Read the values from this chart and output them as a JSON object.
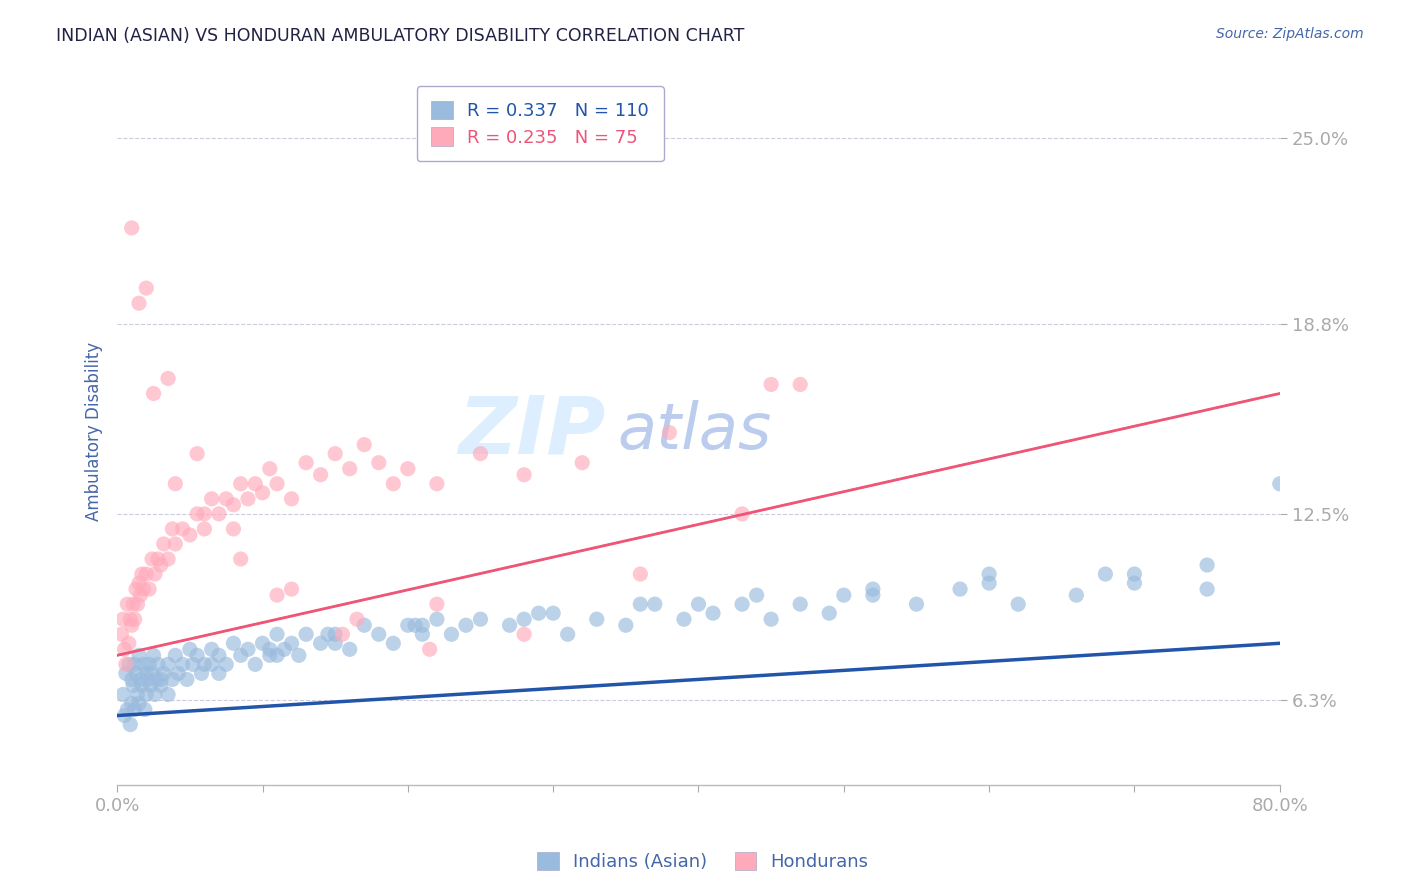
{
  "title": "INDIAN (ASIAN) VS HONDURAN AMBULATORY DISABILITY CORRELATION CHART",
  "source": "Source: ZipAtlas.com",
  "ylabel": "Ambulatory Disability",
  "xlim": [
    0.0,
    80.0
  ],
  "ylim": [
    3.5,
    27.0
  ],
  "yticks": [
    6.3,
    12.5,
    18.8,
    25.0
  ],
  "xticks": [
    0.0,
    10.0,
    20.0,
    30.0,
    40.0,
    50.0,
    60.0,
    70.0,
    80.0
  ],
  "ytick_labels": [
    "6.3%",
    "12.5%",
    "18.8%",
    "25.0%"
  ],
  "blue_color": "#99BBDD",
  "pink_color": "#FFAABB",
  "blue_line_color": "#2255AA",
  "pink_line_color": "#EE5577",
  "pink_dash_color": "#EE8899",
  "grid_color": "#CCCCDD",
  "background_color": "#FFFFFF",
  "legend_label_blue": "Indians (Asian)",
  "legend_label_pink": "Hondurans",
  "R_blue": 0.337,
  "N_blue": 110,
  "R_pink": 0.235,
  "N_pink": 75,
  "blue_line_x0": 0.0,
  "blue_line_y0": 5.8,
  "blue_line_x1": 80.0,
  "blue_line_y1": 8.2,
  "pink_line_x0": 0.0,
  "pink_line_y0": 7.8,
  "pink_line_x1": 80.0,
  "pink_line_y1": 16.5,
  "watermark_top": "ZIP",
  "watermark_bot": "atlas",
  "watermark_color_top": "#DDEEFF",
  "watermark_color_bot": "#BBCCEE",
  "title_color": "#222244",
  "axis_label_color": "#4466AA",
  "tick_color": "#4477BB",
  "blue_scatter_x": [
    0.4,
    0.5,
    0.6,
    0.7,
    0.8,
    0.9,
    1.0,
    1.0,
    1.1,
    1.2,
    1.2,
    1.3,
    1.4,
    1.5,
    1.5,
    1.6,
    1.7,
    1.8,
    1.9,
    2.0,
    2.0,
    2.1,
    2.2,
    2.3,
    2.4,
    2.5,
    2.6,
    2.7,
    2.8,
    3.0,
    3.2,
    3.5,
    3.8,
    4.0,
    4.2,
    4.5,
    4.8,
    5.0,
    5.2,
    5.5,
    5.8,
    6.0,
    6.5,
    7.0,
    7.5,
    8.0,
    8.5,
    9.0,
    9.5,
    10.0,
    10.5,
    11.0,
    11.5,
    12.0,
    12.5,
    13.0,
    14.0,
    15.0,
    16.0,
    17.0,
    18.0,
    19.0,
    20.0,
    21.0,
    22.0,
    23.0,
    24.0,
    25.0,
    27.0,
    29.0,
    31.0,
    33.0,
    35.0,
    37.0,
    39.0,
    41.0,
    43.0,
    45.0,
    47.0,
    49.0,
    52.0,
    55.0,
    58.0,
    62.0,
    66.0,
    70.0,
    75.0,
    3.0,
    6.5,
    10.5,
    14.5,
    20.5,
    28.0,
    36.0,
    44.0,
    52.0,
    60.0,
    68.0,
    75.0,
    3.5,
    7.0,
    11.0,
    15.0,
    21.0,
    30.0,
    40.0,
    50.0,
    60.0,
    70.0,
    80.0
  ],
  "blue_scatter_y": [
    6.5,
    5.8,
    7.2,
    6.0,
    7.5,
    5.5,
    7.0,
    6.2,
    6.8,
    7.5,
    6.0,
    7.2,
    6.5,
    7.8,
    6.2,
    7.0,
    6.8,
    7.5,
    6.0,
    7.2,
    6.5,
    7.0,
    7.5,
    6.8,
    7.2,
    7.8,
    6.5,
    7.0,
    7.5,
    6.8,
    7.2,
    7.5,
    7.0,
    7.8,
    7.2,
    7.5,
    7.0,
    8.0,
    7.5,
    7.8,
    7.2,
    7.5,
    8.0,
    7.8,
    7.5,
    8.2,
    7.8,
    8.0,
    7.5,
    8.2,
    7.8,
    8.5,
    8.0,
    8.2,
    7.8,
    8.5,
    8.2,
    8.5,
    8.0,
    8.8,
    8.5,
    8.2,
    8.8,
    8.5,
    9.0,
    8.5,
    8.8,
    9.0,
    8.8,
    9.2,
    8.5,
    9.0,
    8.8,
    9.5,
    9.0,
    9.2,
    9.5,
    9.0,
    9.5,
    9.2,
    9.8,
    9.5,
    10.0,
    9.5,
    9.8,
    10.2,
    10.0,
    7.0,
    7.5,
    8.0,
    8.5,
    8.8,
    9.0,
    9.5,
    9.8,
    10.0,
    10.5,
    10.5,
    10.8,
    6.5,
    7.2,
    7.8,
    8.2,
    8.8,
    9.2,
    9.5,
    9.8,
    10.2,
    10.5,
    13.5
  ],
  "pink_scatter_x": [
    0.3,
    0.4,
    0.5,
    0.6,
    0.7,
    0.8,
    0.9,
    1.0,
    1.1,
    1.2,
    1.3,
    1.4,
    1.5,
    1.6,
    1.7,
    1.8,
    2.0,
    2.2,
    2.4,
    2.6,
    2.8,
    3.0,
    3.2,
    3.5,
    3.8,
    4.0,
    4.5,
    5.0,
    5.5,
    6.0,
    6.5,
    7.0,
    7.5,
    8.0,
    8.5,
    9.0,
    9.5,
    10.0,
    10.5,
    11.0,
    12.0,
    13.0,
    14.0,
    15.0,
    16.0,
    17.0,
    18.0,
    19.0,
    20.0,
    22.0,
    25.0,
    28.0,
    32.0,
    38.0,
    45.0,
    1.0,
    1.5,
    2.5,
    4.0,
    6.0,
    8.5,
    12.0,
    16.5,
    22.0,
    2.0,
    3.5,
    5.5,
    8.0,
    11.0,
    15.5,
    21.5,
    28.0,
    36.0,
    43.0,
    47.0
  ],
  "pink_scatter_y": [
    8.5,
    9.0,
    8.0,
    7.5,
    9.5,
    8.2,
    9.0,
    8.8,
    9.5,
    9.0,
    10.0,
    9.5,
    10.2,
    9.8,
    10.5,
    10.0,
    10.5,
    10.0,
    11.0,
    10.5,
    11.0,
    10.8,
    11.5,
    11.0,
    12.0,
    11.5,
    12.0,
    11.8,
    12.5,
    12.0,
    13.0,
    12.5,
    13.0,
    12.8,
    13.5,
    13.0,
    13.5,
    13.2,
    14.0,
    13.5,
    13.0,
    14.2,
    13.8,
    14.5,
    14.0,
    14.8,
    14.2,
    13.5,
    14.0,
    13.5,
    14.5,
    13.8,
    14.2,
    15.2,
    16.8,
    22.0,
    19.5,
    16.5,
    13.5,
    12.5,
    11.0,
    10.0,
    9.0,
    9.5,
    20.0,
    17.0,
    14.5,
    12.0,
    9.8,
    8.5,
    8.0,
    8.5,
    10.5,
    12.5,
    16.8
  ]
}
